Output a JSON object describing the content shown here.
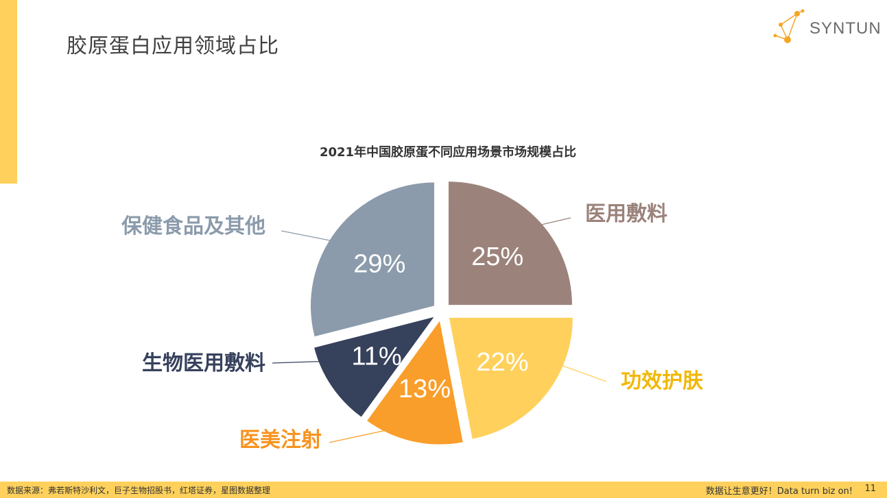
{
  "page": {
    "title": "胶原蛋白应用领域占比",
    "brand": "SYNTUN",
    "accent_color": "#ffd15c"
  },
  "footer": {
    "source": "数据来源：弗若斯特沙利文，巨子生物招股书，红塔证券，星图数据整理",
    "slogan": "数据让生意更好！Data turn biz on!",
    "page_number": "11"
  },
  "chart_data": {
    "type": "pie",
    "title": "2021年中国胶原蛋不同应用场景市场规模占比",
    "slices": [
      {
        "name": "医用敷料",
        "value": 25,
        "label": "25%",
        "color": "#9b837b",
        "name_color": "#9b837b"
      },
      {
        "name": "功效护肤",
        "value": 22,
        "label": "22%",
        "color": "#ffd15c",
        "name_color": "#f2b705"
      },
      {
        "name": "医美注射",
        "value": 13,
        "label": "13%",
        "color": "#f99e2a",
        "name_color": "#f7931e"
      },
      {
        "name": "生物医用敷料",
        "value": 11,
        "label": "11%",
        "color": "#36415c",
        "name_color": "#36415c"
      },
      {
        "name": "保健食品及其他",
        "value": 29,
        "label": "29%",
        "color": "#8b9bab",
        "name_color": "#8b9bab"
      }
    ]
  }
}
